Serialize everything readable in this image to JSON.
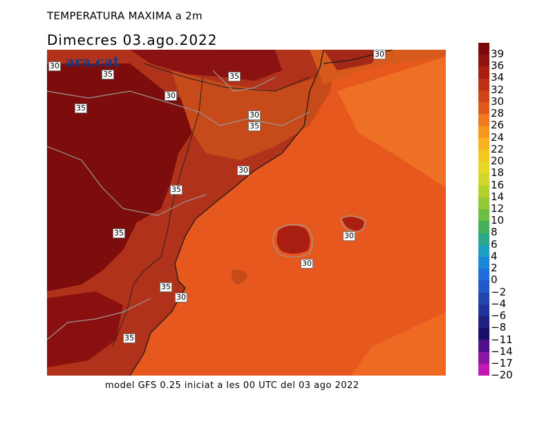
{
  "header": {
    "title": "TEMPERATURA MAXIMA a 2m",
    "subtitle": "Dimecres  03.ago.2022"
  },
  "logo": {
    "text": "ara.cat"
  },
  "footer": {
    "text": "model GFS 0.25 iniciat a les 00 UTC del 03 ago 2022"
  },
  "contour_labels": [
    "30",
    "35",
    "30",
    "35",
    "30",
    "35",
    "30",
    "30",
    "35",
    "35",
    "35",
    "30",
    "30",
    "30",
    "35",
    "35"
  ],
  "legend": {
    "labels": [
      "39",
      "36",
      "34",
      "32",
      "30",
      "28",
      "26",
      "24",
      "22",
      "20",
      "18",
      "16",
      "14",
      "12",
      "10",
      "8",
      "6",
      "4",
      "2",
      "0",
      "−2",
      "−4",
      "−6",
      "−8",
      "−11",
      "−14",
      "−17",
      "−20"
    ],
    "colors": [
      "#7a0a0a",
      "#8f1212",
      "#a81e10",
      "#bd3216",
      "#cd4418",
      "#dd5a1c",
      "#ef7a22",
      "#f7981f",
      "#f6b21f",
      "#f2c81d",
      "#e8d727",
      "#d2d52c",
      "#b3d02f",
      "#93c838",
      "#6cbe45",
      "#45b05c",
      "#2aa78a",
      "#1d9fc2",
      "#1c86d6",
      "#1f6edc",
      "#2058c7",
      "#2244ae",
      "#21329a",
      "#1e2180",
      "#1a0f68",
      "#52108a",
      "#8a159e",
      "#c01ab2"
    ]
  }
}
